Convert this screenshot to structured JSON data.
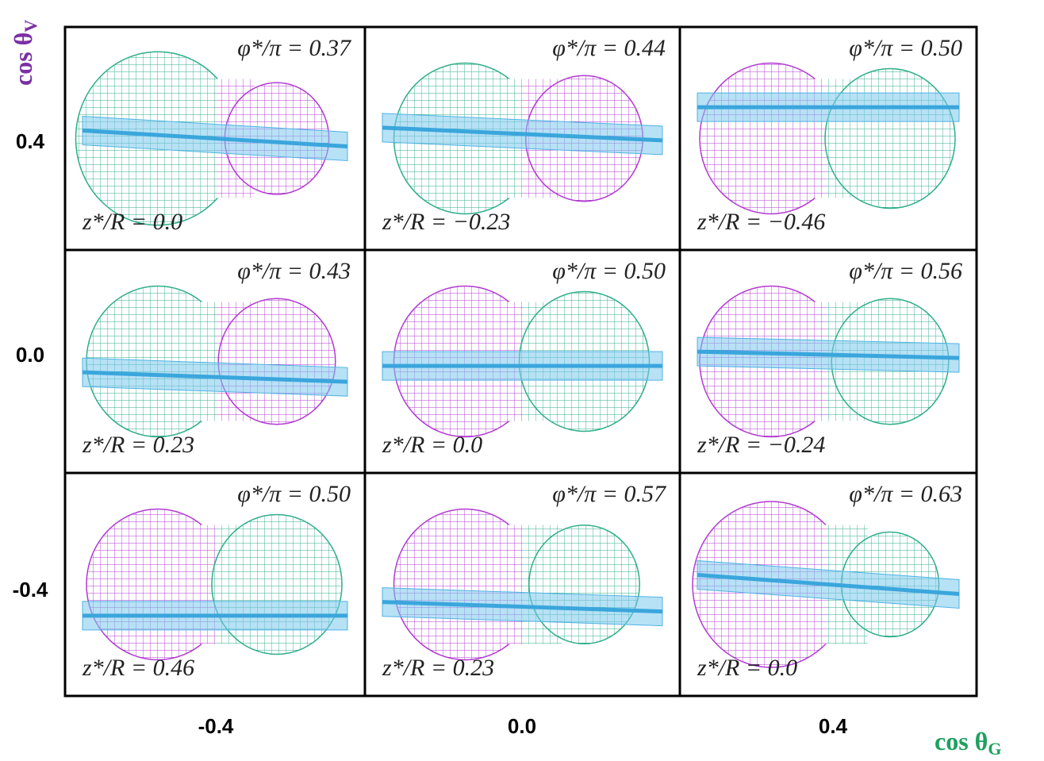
{
  "y_axis": {
    "label": "cos θ",
    "subscript": "V"
  },
  "x_axis": {
    "label": "cos θ",
    "subscript": "G"
  },
  "row_labels": [
    "0.4",
    "0.0",
    "-0.4"
  ],
  "column_labels": [
    "-0.4",
    "0.0",
    "0.4"
  ],
  "cells": [
    [
      {
        "phi": "φ*/π = 0.37",
        "z": "z*/R = 0.0"
      },
      {
        "phi": "φ*/π = 0.44",
        "z": "z*/R = −0.23"
      },
      {
        "phi": "φ*/π = 0.50",
        "z": "z*/R = −0.46"
      }
    ],
    [
      {
        "phi": "φ*/π = 0.43",
        "z": "z*/R = 0.23"
      },
      {
        "phi": "φ*/π = 0.50",
        "z": "z*/R = 0.0"
      },
      {
        "phi": "φ*/π = 0.56",
        "z": "z*/R = −0.24"
      }
    ],
    [
      {
        "phi": "φ*/π = 0.50",
        "z": "z*/R = 0.46"
      },
      {
        "phi": "φ*/π = 0.57",
        "z": "z*/R = 0.23"
      },
      {
        "phi": "φ*/π = 0.63",
        "z": "z*/R = 0.0"
      }
    ]
  ]
}
